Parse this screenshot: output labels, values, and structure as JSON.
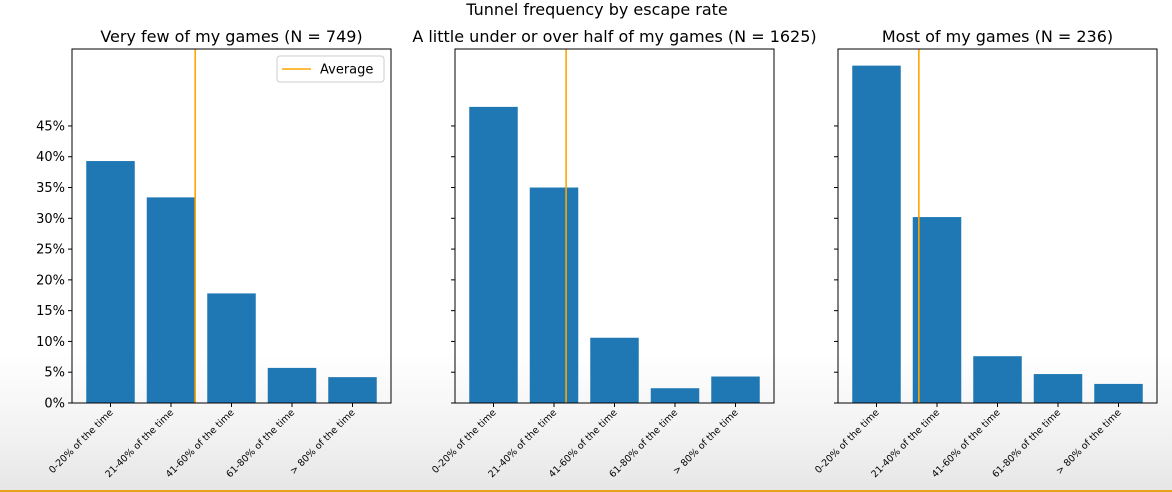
{
  "figure": {
    "suptitle": "Tunnel frequency by escape rate"
  },
  "colors": {
    "bar": "#1f77b4",
    "average": "#ffa500",
    "axis": "#000000"
  },
  "legend": {
    "label": "Average",
    "placement": "upper right of first panel"
  },
  "chart_data": [
    {
      "type": "bar",
      "title": "Very few of my games (N = 749)",
      "categories": [
        "0-20% of the time",
        "21-40% of the time",
        "41-60% of the time",
        "61-80% of the time",
        "> 80% of the time"
      ],
      "values": [
        39.3,
        33.4,
        17.8,
        5.7,
        4.2
      ],
      "average_category_index": 1.4,
      "yticks": [
        "0%",
        "5%",
        "10%",
        "15%",
        "20%",
        "25%",
        "30%",
        "35%",
        "40%",
        "45%"
      ],
      "ylim": [
        0,
        57.5
      ]
    },
    {
      "type": "bar",
      "title": "A little under or over half of my games (N = 1625)",
      "categories": [
        "0-20% of the time",
        "21-40% of the time",
        "41-60% of the time",
        "61-80% of the time",
        "> 80% of the time"
      ],
      "values": [
        48.1,
        35.0,
        10.6,
        2.4,
        4.3
      ],
      "average_category_index": 1.2,
      "ylim": [
        0,
        57.5
      ]
    },
    {
      "type": "bar",
      "title": "Most of my games (N = 236)",
      "categories": [
        "0-20% of the time",
        "21-40% of the time",
        "41-60% of the time",
        "61-80% of the time",
        "> 80% of the time"
      ],
      "values": [
        54.8,
        30.2,
        7.6,
        4.7,
        3.1
      ],
      "average_category_index": 0.7,
      "ylim": [
        0,
        57.5
      ]
    }
  ]
}
